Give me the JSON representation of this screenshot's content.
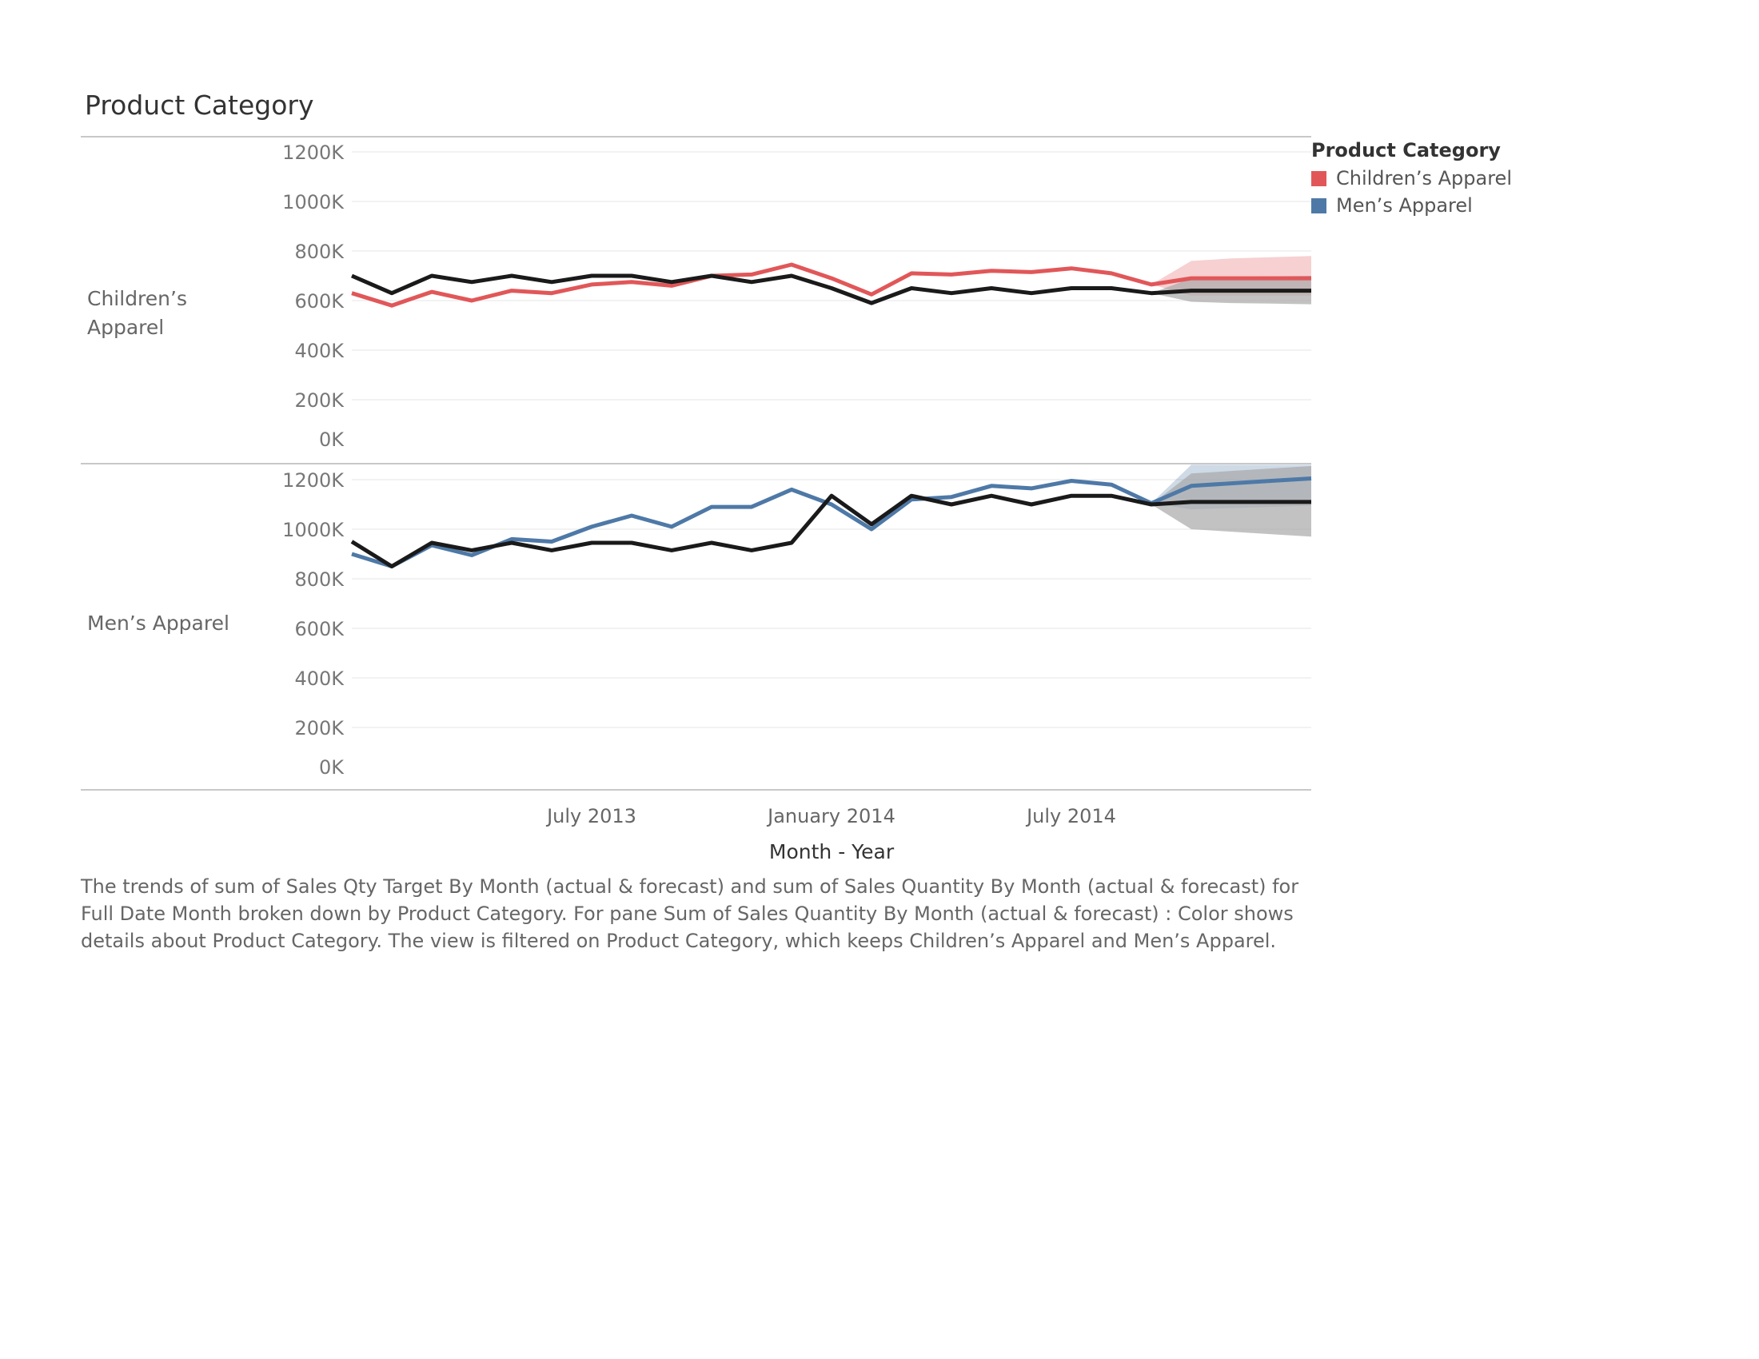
{
  "header": {
    "title": "Product Category"
  },
  "legend": {
    "title": "Product Category",
    "items": [
      {
        "label": "Children’s Apparel",
        "color": "#e15759"
      },
      {
        "label": "Men’s Apparel",
        "color": "#4e79a7"
      }
    ]
  },
  "colors": {
    "target_line": "#1a1a1a",
    "target_band": "#a8a8a8",
    "grid": "#eeeeee",
    "divider": "#c8c8c8"
  },
  "caption": "The trends of sum of Sales Qty Target By Month (actual & forecast)  and sum of Sales Quantity By Month (actual & forecast)  for Full Date Month broken down by Product Category.  For pane Sum of Sales Quantity By Month (actual & forecast) :  Color shows details about Product Category. The view is filtered on Product Category, which keeps Children’s Apparel and Men’s Apparel.",
  "chart_data": {
    "type": "line",
    "xlabel": "Month - Year",
    "x_ticks": [
      "July 2013",
      "January 2014",
      "July 2014"
    ],
    "x": [
      "2013-01",
      "2013-02",
      "2013-03",
      "2013-04",
      "2013-05",
      "2013-06",
      "2013-07",
      "2013-08",
      "2013-09",
      "2013-10",
      "2013-11",
      "2013-12",
      "2014-01",
      "2014-02",
      "2014-03",
      "2014-04",
      "2014-05",
      "2014-06",
      "2014-07",
      "2014-08",
      "2014-09",
      "2014-10",
      "2014-11",
      "2014-12",
      "2015-01"
    ],
    "forecast_start": "2014-10",
    "y_ticks": [
      "1200K",
      "1000K",
      "800K",
      "600K",
      "400K",
      "200K",
      "0K"
    ],
    "ylim": [
      0,
      1200000
    ],
    "grid": true,
    "legend_position": "right",
    "panes": [
      {
        "label": "Children’s Apparel",
        "series": [
          {
            "name": "Children’s Apparel",
            "color": "#e15759",
            "values": [
              630000,
              580000,
              635000,
              600000,
              640000,
              630000,
              665000,
              675000,
              660000,
              700000,
              705000,
              745000,
              690000,
              625000,
              710000,
              705000,
              720000,
              715000,
              730000,
              710000,
              665000,
              690000,
              690000,
              690000,
              690000
            ],
            "band_low": [
              null,
              null,
              null,
              null,
              null,
              null,
              null,
              null,
              null,
              null,
              null,
              null,
              null,
              null,
              null,
              null,
              null,
              null,
              null,
              null,
              665000,
              620000,
              620000,
              620000,
              620000
            ],
            "band_high": [
              null,
              null,
              null,
              null,
              null,
              null,
              null,
              null,
              null,
              null,
              null,
              null,
              null,
              null,
              null,
              null,
              null,
              null,
              null,
              null,
              665000,
              760000,
              770000,
              775000,
              780000
            ]
          },
          {
            "color": "#1a1a1a",
            "values": [
              700000,
              630000,
              700000,
              675000,
              700000,
              675000,
              700000,
              700000,
              675000,
              700000,
              675000,
              700000,
              650000,
              590000,
              650000,
              630000,
              650000,
              630000,
              650000,
              650000,
              630000,
              640000,
              640000,
              640000,
              640000
            ],
            "band_low": [
              null,
              null,
              null,
              null,
              null,
              null,
              null,
              null,
              null,
              null,
              null,
              null,
              null,
              null,
              null,
              null,
              null,
              null,
              null,
              null,
              630000,
              595000,
              590000,
              588000,
              585000
            ],
            "band_high": [
              null,
              null,
              null,
              null,
              null,
              null,
              null,
              null,
              null,
              null,
              null,
              null,
              null,
              null,
              null,
              null,
              null,
              null,
              null,
              null,
              630000,
              690000,
              695000,
              698000,
              700000
            ]
          }
        ]
      },
      {
        "label": "Men’s Apparel",
        "series": [
          {
            "name": "Men’s Apparel",
            "color": "#4e79a7",
            "values": [
              900000,
              850000,
              935000,
              895000,
              960000,
              950000,
              1010000,
              1055000,
              1010000,
              1090000,
              1090000,
              1160000,
              1100000,
              1000000,
              1120000,
              1130000,
              1175000,
              1165000,
              1195000,
              1180000,
              1105000,
              1175000,
              1185000,
              1195000,
              1205000
            ],
            "band_low": [
              null,
              null,
              null,
              null,
              null,
              null,
              null,
              null,
              null,
              null,
              null,
              null,
              null,
              null,
              null,
              null,
              null,
              null,
              null,
              null,
              1105000,
              1080000,
              1085000,
              1090000,
              1095000
            ],
            "band_high": [
              null,
              null,
              null,
              null,
              null,
              null,
              null,
              null,
              null,
              null,
              null,
              null,
              null,
              null,
              null,
              null,
              null,
              null,
              null,
              null,
              1105000,
              1320000,
              1330000,
              1340000,
              1350000
            ]
          },
          {
            "color": "#1a1a1a",
            "values": [
              950000,
              850000,
              945000,
              915000,
              945000,
              915000,
              945000,
              945000,
              915000,
              945000,
              915000,
              945000,
              1135000,
              1020000,
              1135000,
              1100000,
              1135000,
              1100000,
              1135000,
              1135000,
              1100000,
              1110000,
              1110000,
              1110000,
              1110000
            ],
            "band_low": [
              null,
              null,
              null,
              null,
              null,
              null,
              null,
              null,
              null,
              null,
              null,
              null,
              null,
              null,
              null,
              null,
              null,
              null,
              null,
              null,
              1100000,
              1000000,
              990000,
              980000,
              970000
            ],
            "band_high": [
              null,
              null,
              null,
              null,
              null,
              null,
              null,
              null,
              null,
              null,
              null,
              null,
              null,
              null,
              null,
              null,
              null,
              null,
              null,
              null,
              1100000,
              1225000,
              1235000,
              1245000,
              1255000
            ]
          }
        ]
      }
    ]
  }
}
